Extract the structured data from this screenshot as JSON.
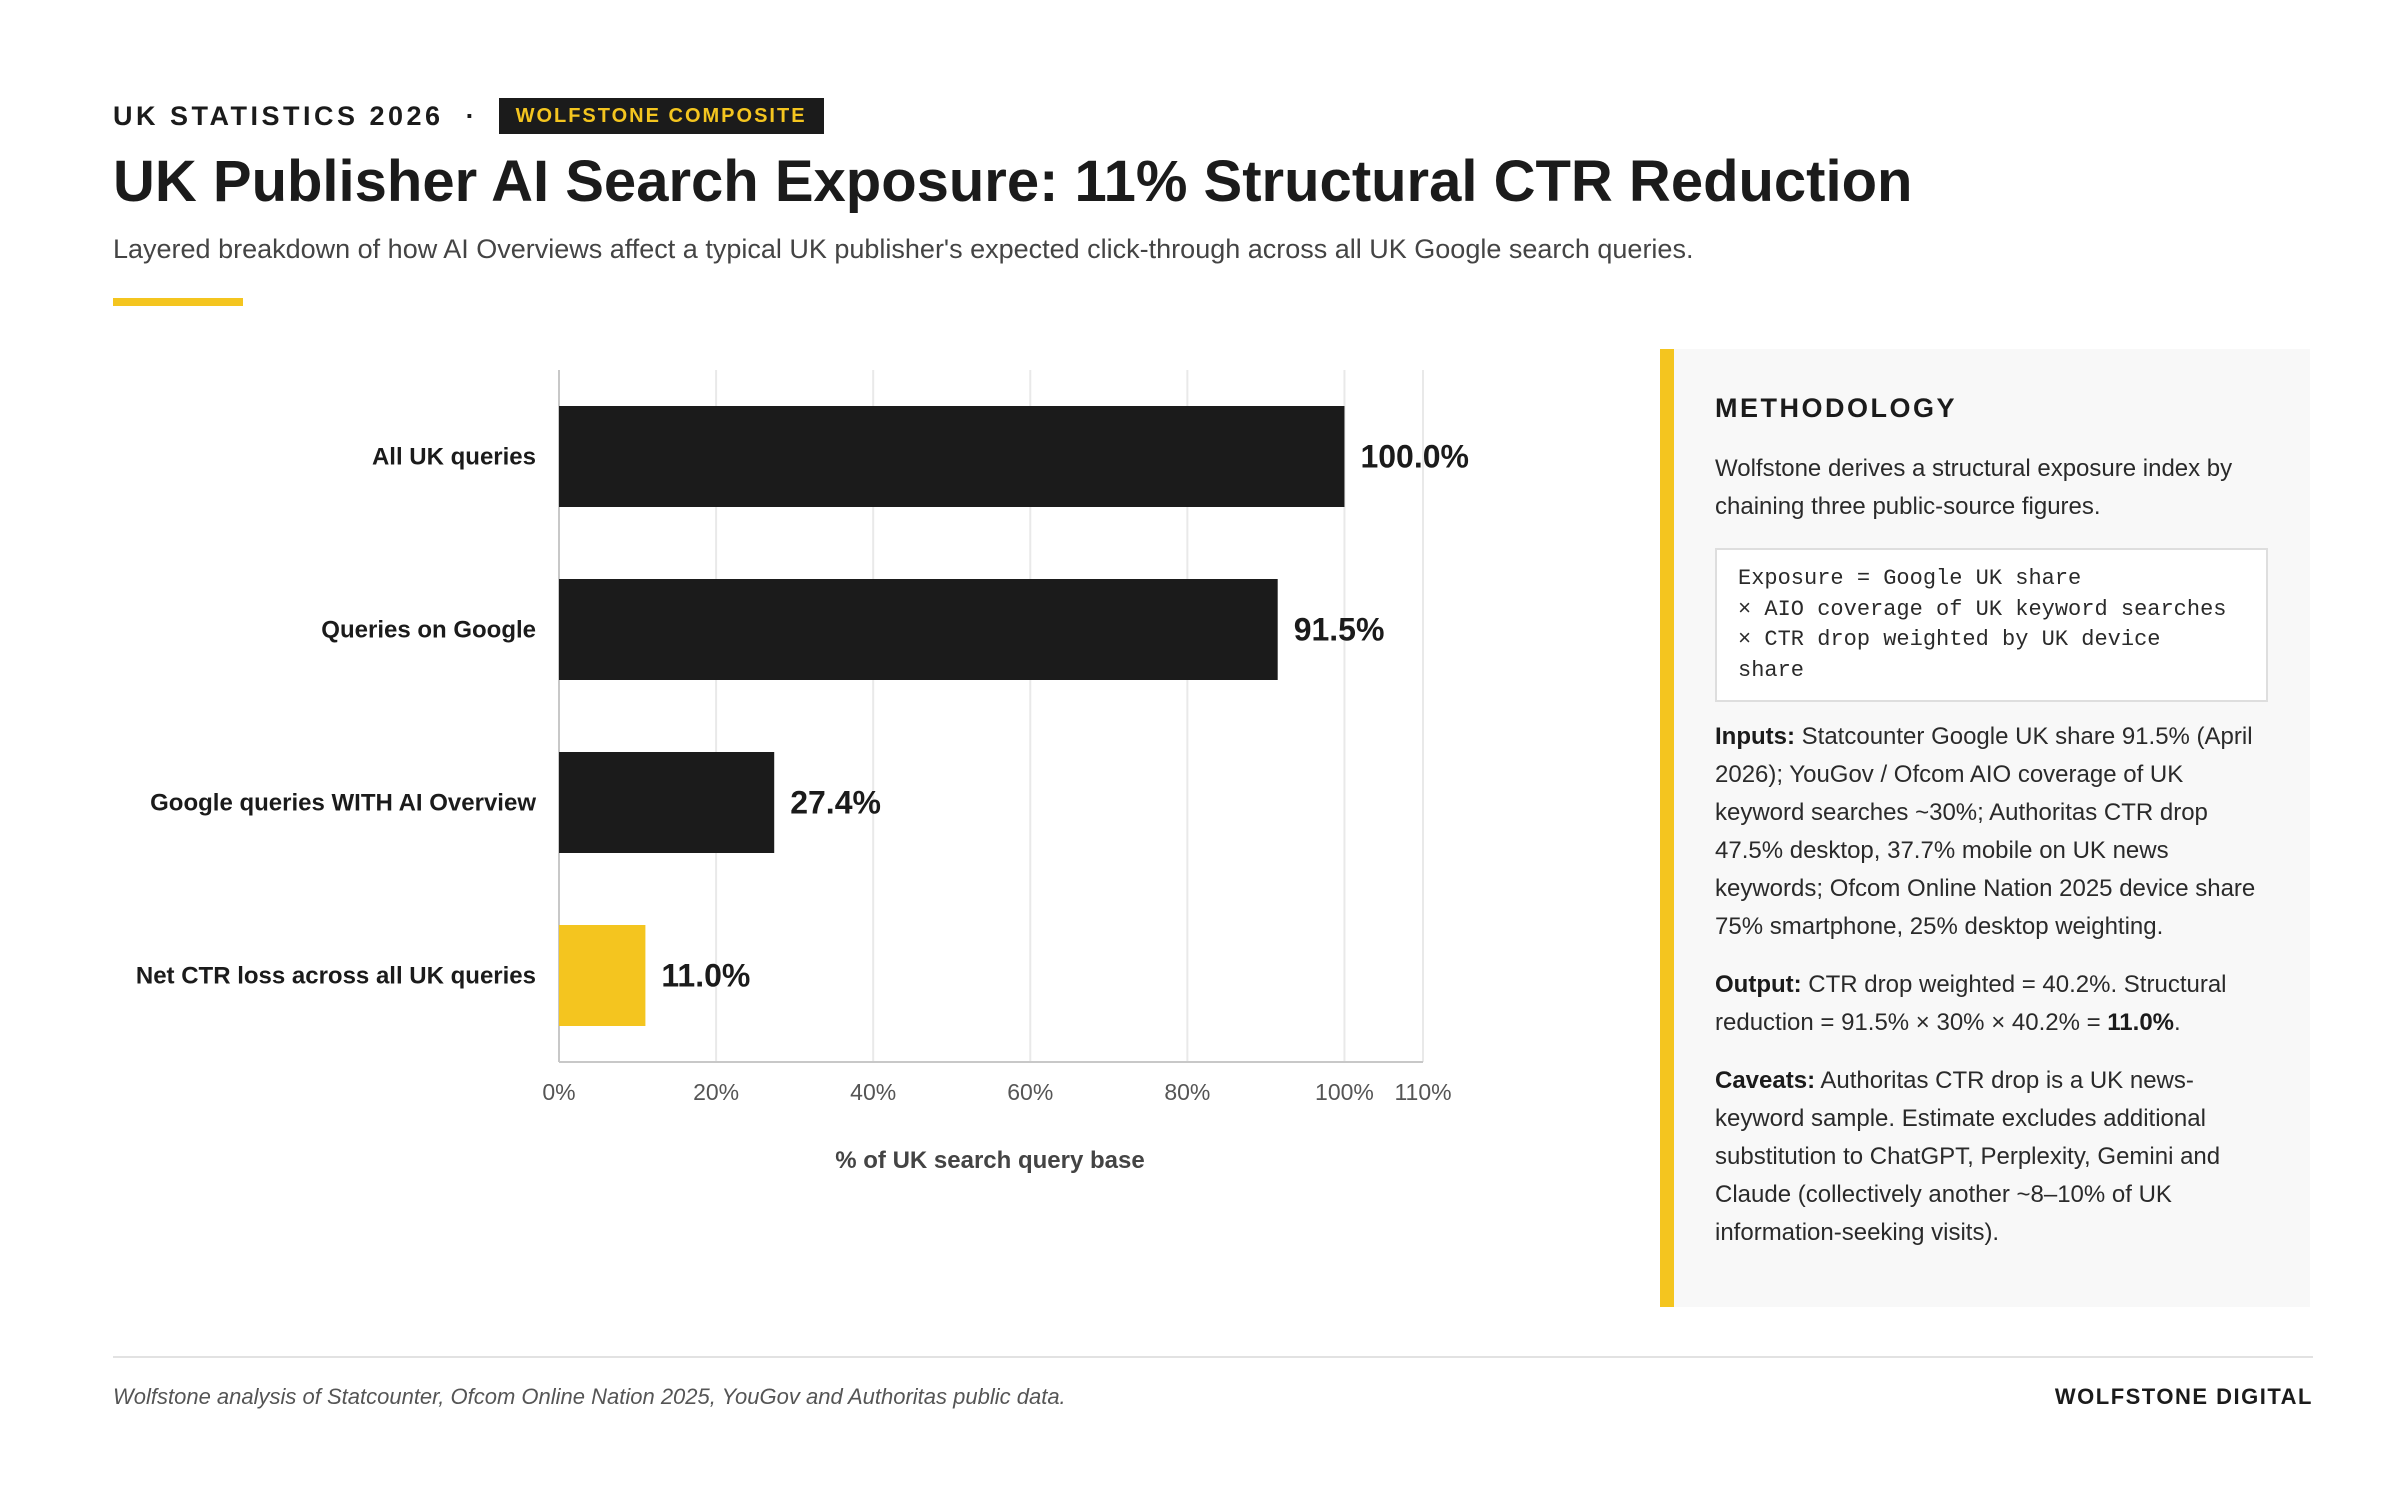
{
  "header": {
    "kicker": "UK STATISTICS 2026",
    "separator": "·",
    "badge": "WOLFSTONE COMPOSITE",
    "title": "UK Publisher AI Search Exposure: 11% Structural CTR Reduction",
    "subtitle": "Layered breakdown of how AI Overviews affect a typical UK publisher's expected click-through across all UK Google search queries."
  },
  "colors": {
    "accent": "#f4c51f",
    "bar_dark": "#1b1b1b",
    "bar_highlight": "#f4c51f",
    "grid": "#e9e9e9"
  },
  "chart_data": {
    "type": "bar",
    "orientation": "horizontal",
    "categories": [
      "All UK queries",
      "Queries on Google",
      "Google queries WITH AI Overview",
      "Net CTR loss across all UK queries"
    ],
    "values": [
      100.0,
      91.5,
      27.4,
      11.0
    ],
    "data_labels": [
      "100.0%",
      "91.5%",
      "27.4%",
      "11.0%"
    ],
    "highlight": [
      "no",
      "no",
      "no",
      "yes"
    ],
    "xlabel": "% of UK search query base",
    "xlim": [
      0,
      110
    ],
    "xticks": [
      0,
      20,
      40,
      60,
      80,
      100,
      110
    ],
    "xtick_labels": [
      "0%",
      "20%",
      "40%",
      "60%",
      "80%",
      "100%",
      "110%"
    ],
    "grid": "vertical"
  },
  "methodology": {
    "heading": "METHODOLOGY",
    "intro": "Wolfstone derives a structural exposure index by chaining three public-source figures.",
    "formula": [
      "Exposure = Google UK share",
      "× AIO coverage of UK keyword searches",
      "× CTR drop weighted by UK device",
      "share"
    ],
    "inputs_label": "Inputs:",
    "inputs_text": " Statcounter Google UK share 91.5% (April 2026); YouGov / Ofcom AIO coverage of UK keyword searches ~30%; Authoritas CTR drop 47.5% desktop, 37.7% mobile on UK news keywords; Ofcom Online Nation 2025 device share 75% smartphone, 25% desktop weighting.",
    "output_label": "Output:",
    "output_text": " CTR drop weighted = 40.2%. Structural reduction = 91.5% × 30% × 40.2% = ",
    "output_result": "11.0%",
    "output_end": ".",
    "caveats_label": "Caveats:",
    "caveats_text": " Authoritas CTR drop is a UK news-keyword sample. Estimate excludes additional substitution to ChatGPT, Perplexity, Gemini and Claude (collectively another ~8–10% of UK information-seeking visits)."
  },
  "footer": {
    "source": "Wolfstone analysis of Statcounter, Ofcom Online Nation 2025, YouGov and Authoritas public data.",
    "brand": "WOLFSTONE DIGITAL"
  }
}
